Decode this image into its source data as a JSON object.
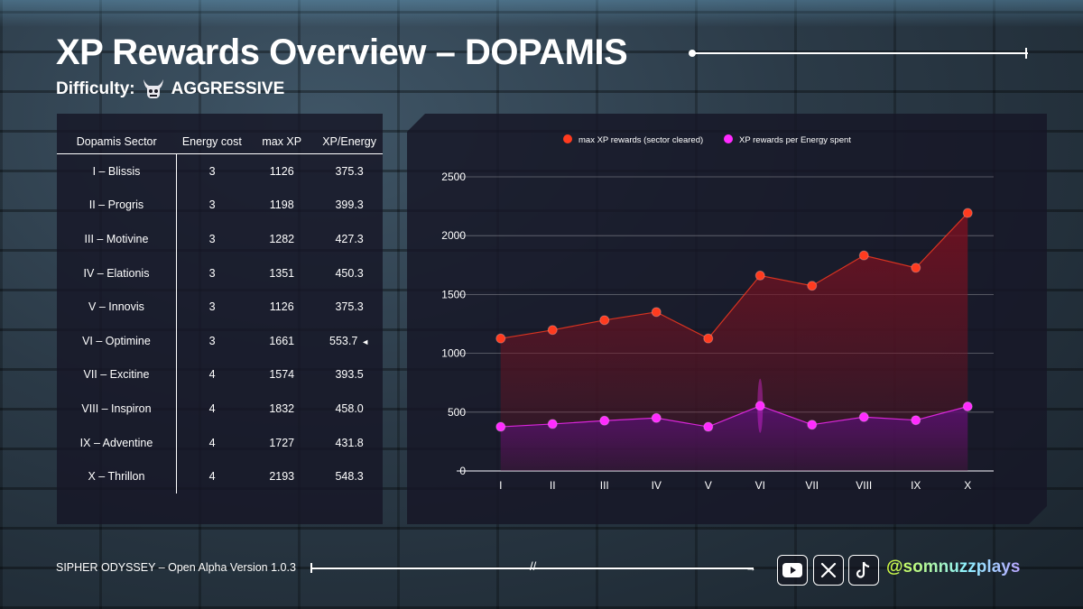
{
  "header": {
    "title": "XP Rewards Overview – DOPAMIS",
    "difficulty_label": "Difficulty:",
    "difficulty_value": "AGGRESSIVE",
    "difficulty_icon": "demon-skull-icon"
  },
  "table": {
    "headers": [
      "Dopamis Sector",
      "Energy cost",
      "max XP",
      "XP/Energy"
    ],
    "rows": [
      {
        "sector": "I – Blissis",
        "energy": "3",
        "max_xp": "1126",
        "xp_per_energy": "375.3",
        "mark": ""
      },
      {
        "sector": "II – Progris",
        "energy": "3",
        "max_xp": "1198",
        "xp_per_energy": "399.3",
        "mark": ""
      },
      {
        "sector": "III – Motivine",
        "energy": "3",
        "max_xp": "1282",
        "xp_per_energy": "427.3",
        "mark": ""
      },
      {
        "sector": "IV – Elationis",
        "energy": "3",
        "max_xp": "1351",
        "xp_per_energy": "450.3",
        "mark": ""
      },
      {
        "sector": "V – Innovis",
        "energy": "3",
        "max_xp": "1126",
        "xp_per_energy": "375.3",
        "mark": ""
      },
      {
        "sector": "VI – Optimine",
        "energy": "3",
        "max_xp": "1661",
        "xp_per_energy": "553.7",
        "mark": "◄"
      },
      {
        "sector": "VII – Excitine",
        "energy": "4",
        "max_xp": "1574",
        "xp_per_energy": "393.5",
        "mark": ""
      },
      {
        "sector": "VIII – Inspiron",
        "energy": "4",
        "max_xp": "1832",
        "xp_per_energy": "458.0",
        "mark": ""
      },
      {
        "sector": "IX – Adventine",
        "energy": "4",
        "max_xp": "1727",
        "xp_per_energy": "431.8",
        "mark": ""
      },
      {
        "sector": "X – Thrillon",
        "energy": "4",
        "max_xp": "2193",
        "xp_per_energy": "548.3",
        "mark": ""
      }
    ]
  },
  "chart_data": {
    "type": "line",
    "title": "",
    "xlabel": "",
    "ylabel": "",
    "categories": [
      "I",
      "II",
      "III",
      "IV",
      "V",
      "VI",
      "VII",
      "VIII",
      "IX",
      "X"
    ],
    "ylim": [
      0,
      2500
    ],
    "yticks": [
      0,
      500,
      1000,
      1500,
      2000,
      2500
    ],
    "grid": true,
    "legend_position": "top",
    "series": [
      {
        "name": "max XP rewards (sector cleared)",
        "color": "#ff3b1f",
        "fill": "#7a1020",
        "values": [
          1126,
          1198,
          1282,
          1351,
          1126,
          1661,
          1574,
          1832,
          1727,
          2193
        ]
      },
      {
        "name": "XP rewards per Energy spent",
        "color": "#ff2bff",
        "fill": "#5a1075",
        "values": [
          375.3,
          399.3,
          427.3,
          450.3,
          375.3,
          553.7,
          393.5,
          458.0,
          431.8,
          548.3
        ]
      }
    ]
  },
  "footer": {
    "game_version": "SIPHER ODYSSEY – Open Alpha Version 1.0.3",
    "divider_mark": "//",
    "arrow": "→",
    "handle": "@somnuzzplays",
    "social_icons": [
      "youtube-icon",
      "x-icon",
      "tiktok-icon"
    ]
  }
}
